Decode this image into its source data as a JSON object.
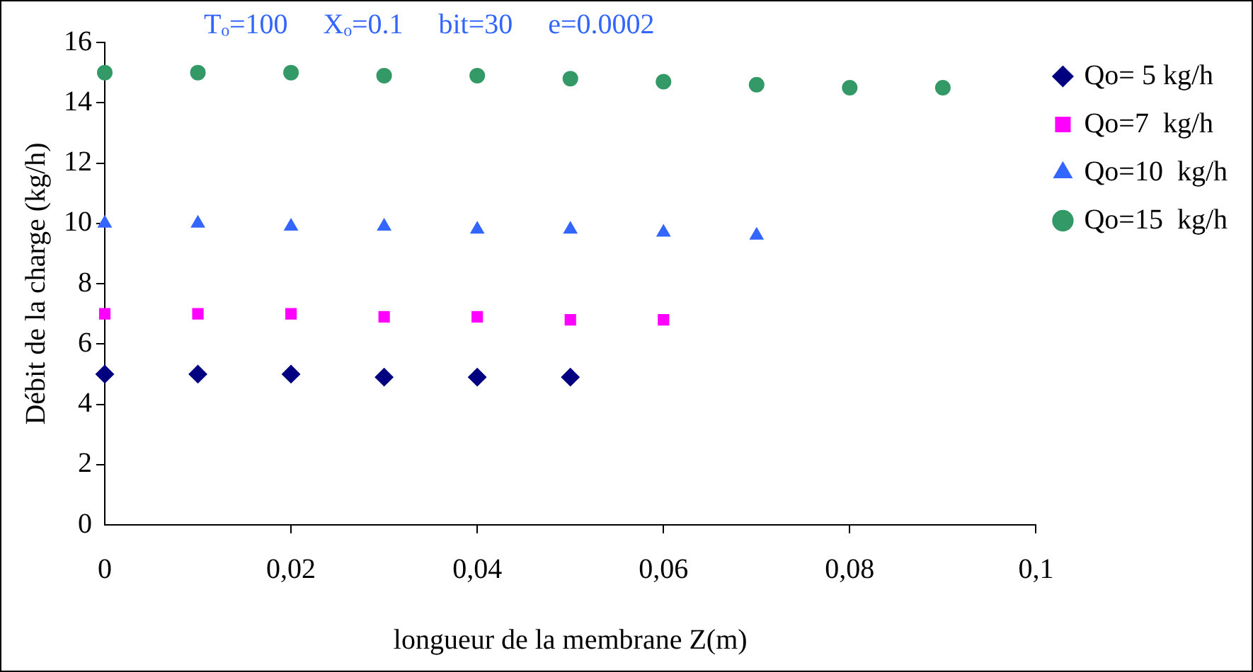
{
  "chart_data": {
    "type": "scatter",
    "xlabel": "longueur de la membrane Z(m)",
    "ylabel": "Débit de la charge (kg/h)",
    "annotations": [
      "Tₒ=100     Xₒ=0.1     bit=30     e=0.0002"
    ],
    "xlim": [
      0,
      0.1
    ],
    "xticks": [
      0,
      {
        "value": 0.02,
        "label": "0,02"
      },
      {
        "value": 0.04,
        "label": "0,04"
      },
      {
        "value": 0.06,
        "label": "0,06"
      },
      {
        "value": 0.08,
        "label": "0,08"
      },
      {
        "value": 0.1,
        "label": "0,1"
      }
    ],
    "ylim": [
      0,
      16
    ],
    "yticks": [
      0,
      2,
      4,
      6,
      8,
      10,
      12,
      14,
      16
    ],
    "grid": false,
    "legend": "right",
    "series": [
      {
        "name": "Qo= 5 kg/h",
        "color": "#000080",
        "marker": "diamond",
        "x": [
          0,
          0.01,
          0.02,
          0.03,
          0.04,
          0.05
        ],
        "values": [
          5,
          5,
          5,
          4.9,
          4.9,
          4.9
        ]
      },
      {
        "name": "Qo=7  kg/h",
        "color": "#ff00ff",
        "marker": "square",
        "x": [
          0,
          0.01,
          0.02,
          0.03,
          0.04,
          0.05,
          0.06
        ],
        "values": [
          7,
          7,
          7,
          6.9,
          6.9,
          6.8,
          6.8
        ]
      },
      {
        "name": "Qo=10  kg/h",
        "color": "#3366ff",
        "marker": "triangle",
        "x": [
          0,
          0.01,
          0.02,
          0.03,
          0.04,
          0.05,
          0.06,
          0.07
        ],
        "values": [
          10,
          10,
          9.9,
          9.9,
          9.8,
          9.8,
          9.7,
          9.6
        ]
      },
      {
        "name": "Qo=15  kg/h",
        "color": "#339966",
        "marker": "circle",
        "x": [
          0,
          0.01,
          0.02,
          0.03,
          0.04,
          0.05,
          0.06,
          0.07,
          0.08,
          0.09
        ],
        "values": [
          15,
          15,
          15,
          14.9,
          14.9,
          14.8,
          14.7,
          14.6,
          14.5,
          14.5
        ]
      }
    ]
  }
}
